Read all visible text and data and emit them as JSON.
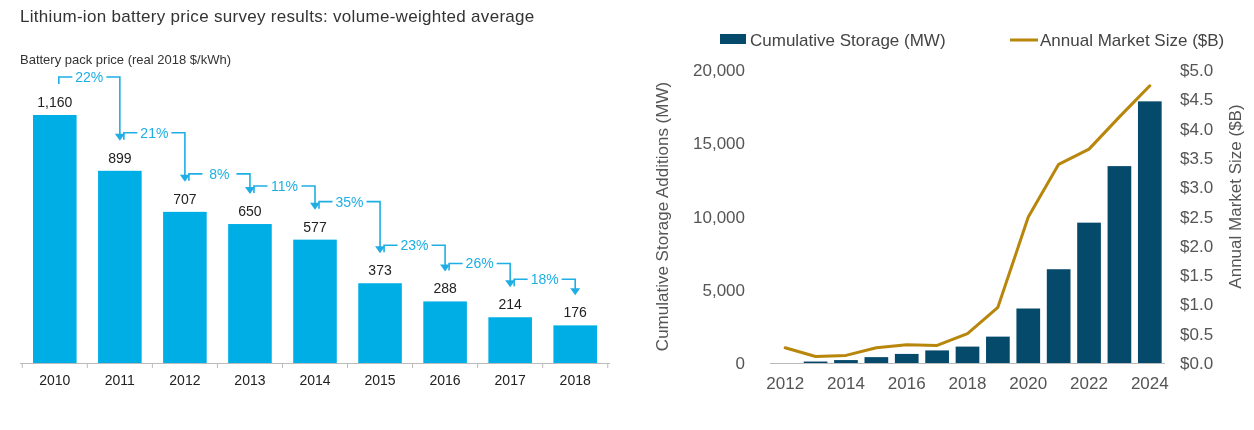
{
  "chart_data": [
    {
      "type": "bar",
      "title": "Lithium-ion battery price survey results: volume-weighted average",
      "ylabel": "Battery pack price (real 2018 $/kWh)",
      "categories": [
        "2010",
        "2011",
        "2012",
        "2013",
        "2014",
        "2015",
        "2016",
        "2017",
        "2018"
      ],
      "values": [
        1160,
        899,
        707,
        650,
        577,
        373,
        288,
        214,
        176
      ],
      "color": "#00aee6",
      "value_labels": [
        "1,160",
        "899",
        "707",
        "650",
        "577",
        "373",
        "288",
        "214",
        "176"
      ],
      "annotations": [
        "22%",
        "21%",
        "8%",
        "11%",
        "35%",
        "23%",
        "26%",
        "18%"
      ],
      "tick_labels": "x"
    },
    {
      "type": "bar",
      "ylabel": "Cumulative Storage Additions (MW)",
      "y2label": "Annual Market Size ($B)",
      "series": [
        {
          "name": "Cumulative Storage (MW)",
          "type": "bar",
          "color": "#054a6b",
          "x": [
            2013,
            2014,
            2015,
            2016,
            2017,
            2018,
            2019,
            2020,
            2021,
            2022,
            2023,
            2024
          ],
          "values": [
            100,
            200,
            400,
            620,
            860,
            1120,
            1800,
            3720,
            6400,
            9580,
            13440,
            17860
          ]
        },
        {
          "name": "Annual Market Size ($B)",
          "type": "line",
          "axis": "y2",
          "color": "#b8860b",
          "x": [
            2012,
            2013,
            2014,
            2015,
            2016,
            2017,
            2018,
            2019,
            2020,
            2021,
            2022,
            2023,
            2024
          ],
          "values": [
            0.26,
            0.11,
            0.13,
            0.26,
            0.31,
            0.3,
            0.5,
            0.95,
            2.49,
            3.39,
            3.65,
            4.2,
            4.73
          ]
        }
      ],
      "xlim": [
        2011.5,
        2024.5
      ],
      "xticks": [
        2012,
        2014,
        2016,
        2018,
        2020,
        2022,
        2024
      ],
      "ylim": [
        0,
        20000
      ],
      "yticks": [
        0,
        {
          "value": 5000,
          "label": "5,000"
        },
        {
          "value": 10000,
          "label": "10,000"
        },
        {
          "value": 15000,
          "label": "15,000"
        },
        {
          "value": 20000,
          "label": "20,000"
        }
      ],
      "y2lim": [
        0,
        5
      ],
      "y2ticks": [
        {
          "value": 0,
          "label": "$0.0"
        },
        {
          "value": 0.5,
          "label": "$0.5"
        },
        {
          "value": 1,
          "label": "$1.0"
        },
        {
          "value": 1.5,
          "label": "$1.5"
        },
        {
          "value": 2,
          "label": "$2.0"
        },
        {
          "value": 2.5,
          "label": "$2.5"
        },
        {
          "value": 3,
          "label": "$3.0"
        },
        {
          "value": 3.5,
          "label": "$3.5"
        },
        {
          "value": 4,
          "label": "$4.0"
        },
        {
          "value": 4.5,
          "label": "$4.5"
        },
        {
          "value": 5,
          "label": "$5.0"
        }
      ],
      "legend": "top",
      "grid": false,
      "marker": "none"
    }
  ]
}
